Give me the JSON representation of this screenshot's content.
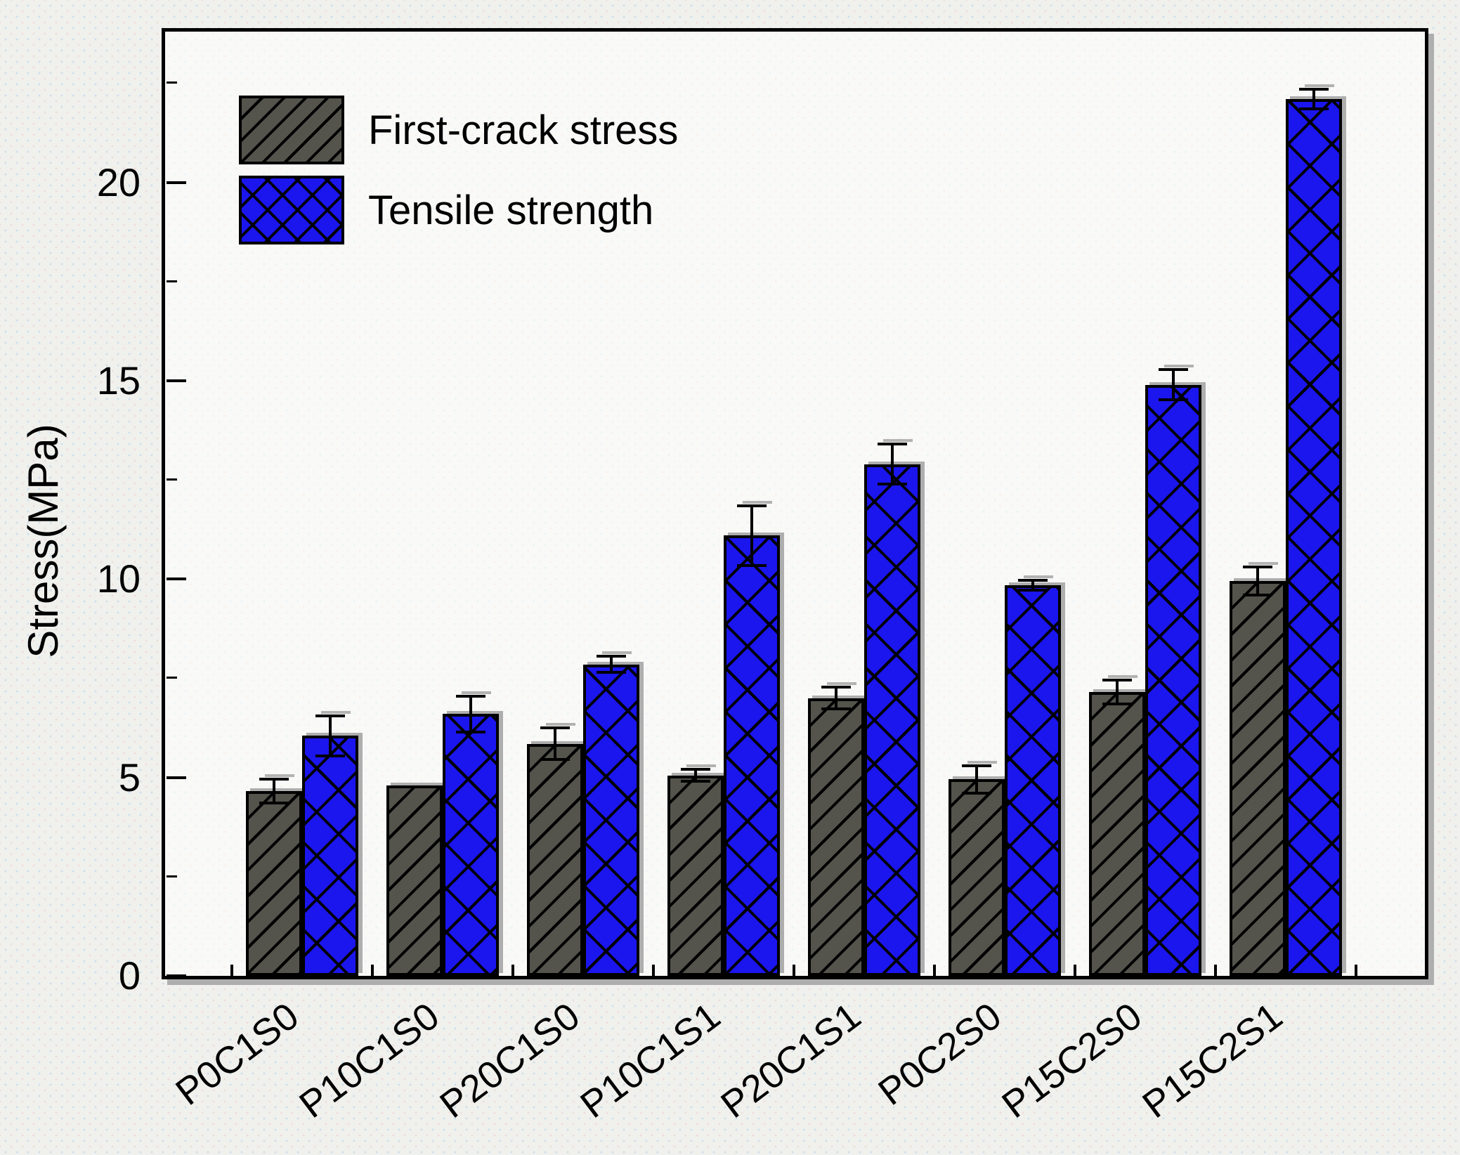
{
  "figure": {
    "description": "Grouped bar chart of first-crack stress and tensile strength for eight mixes"
  },
  "chart_data": {
    "type": "bar",
    "title": "",
    "xlabel": "",
    "ylabel": "Stress(MPa)",
    "categories": [
      "P0C1S0",
      "P10C1S0",
      "P20C1S0",
      "P10C1S1",
      "P20C1S1",
      "P0C2S0",
      "P15C2S0",
      "P15C2S1"
    ],
    "series": [
      {
        "name": "First-crack stress",
        "color": "#54544d",
        "hatch": "diagonal",
        "values": [
          4.65,
          4.8,
          5.85,
          5.05,
          7.0,
          4.95,
          7.15,
          9.95
        ],
        "errors": [
          0.3,
          0,
          0.4,
          0.15,
          0.27,
          0.35,
          0.3,
          0.35
        ]
      },
      {
        "name": "Tensile strength",
        "color": "#1b15ee",
        "hatch": "crosshatch",
        "values": [
          6.05,
          6.6,
          7.85,
          11.1,
          12.9,
          9.85,
          14.9,
          22.1
        ],
        "errors": [
          0.5,
          0.45,
          0.2,
          0.75,
          0.5,
          0.12,
          0.38,
          0.25
        ]
      }
    ],
    "ylim": [
      0,
      23.8
    ],
    "yticks_major": [
      0,
      5,
      10,
      15,
      20
    ],
    "yticks_minor": [
      2.5,
      7.5,
      12.5,
      17.5,
      22.5
    ],
    "grid": false,
    "legend_position": "top-left",
    "error_bars": true,
    "shadow_color": "#aeaeae",
    "frame_color": "#000000"
  }
}
